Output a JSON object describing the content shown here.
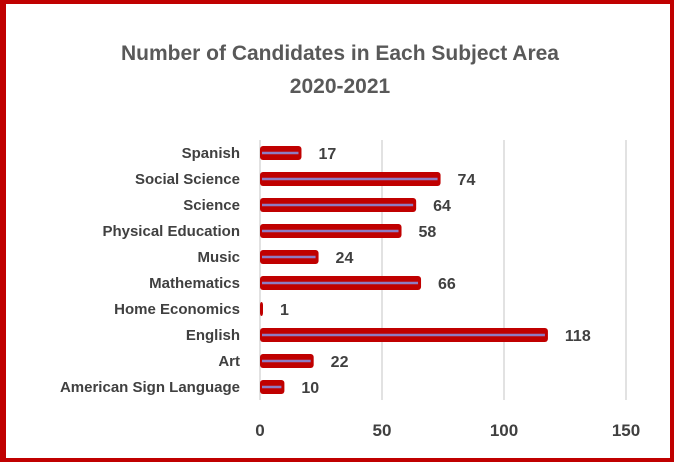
{
  "chart_data": {
    "type": "bar",
    "orientation": "horizontal",
    "title": "Number of Candidates in Each Subject Area",
    "subtitle": "2020-2021",
    "categories": [
      "Spanish",
      "Social Science",
      "Science",
      "Physical Education",
      "Music",
      "Mathematics",
      "Home Economics",
      "English",
      "Art",
      "American Sign Language"
    ],
    "values": [
      17,
      74,
      64,
      58,
      24,
      66,
      1,
      118,
      22,
      10
    ],
    "x_ticks": [
      "0",
      "50",
      "100",
      "150"
    ],
    "xlim": [
      0,
      150
    ],
    "grid": "vertical",
    "legend": "none",
    "data_labels": true,
    "bar_color": "#c00000",
    "bar_inner_color": "#8e7cc3",
    "frame_color": "#c00000"
  }
}
